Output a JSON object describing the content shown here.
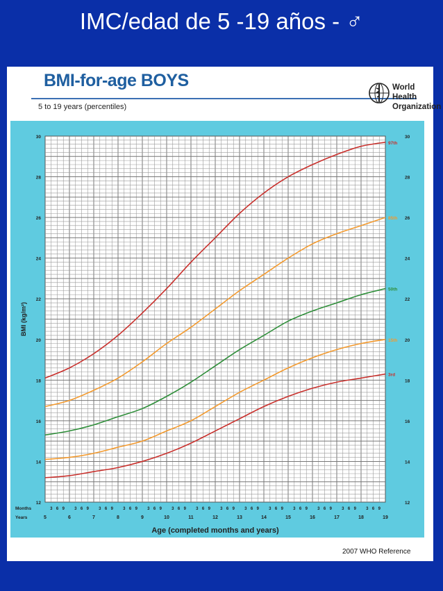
{
  "slide": {
    "title": "IMC/edad de 5 -19 años - ♂",
    "background": "#0a2fa8"
  },
  "header": {
    "title": "BMI-for-age  BOYS",
    "subtitle": "5 to 19 years (percentiles)",
    "organization": [
      "World Health",
      "Organization"
    ],
    "logo_icon": "who-emblem-icon"
  },
  "footer": {
    "reference": "2007  WHO Reference"
  },
  "chart_data": {
    "type": "line",
    "title": "BMI-for-age  BOYS",
    "subtitle": "5 to 19 years (percentiles)",
    "xlabel": "Age (completed months and years)",
    "ylabel": "BMI (kg/m²)",
    "xlim": [
      5,
      19
    ],
    "ylim": [
      12,
      30
    ],
    "year_ticks": [
      "5",
      "6",
      "7",
      "8",
      "9",
      "10",
      "11",
      "12",
      "13",
      "14",
      "15",
      "16",
      "17",
      "18",
      "19"
    ],
    "month_ticks": [
      "3",
      "6",
      "9"
    ],
    "y_ticks": [
      "12",
      "14",
      "16",
      "18",
      "20",
      "22",
      "24",
      "26",
      "28",
      "30"
    ],
    "row_labels": [
      "Months",
      "Years"
    ],
    "grid": true,
    "chart_area_color": "#5fcbe0",
    "series": [
      {
        "name": "97th",
        "color": "#c9302c",
        "x": [
          5,
          6,
          7,
          8,
          9,
          10,
          11,
          12,
          13,
          14,
          15,
          16,
          17,
          18,
          19
        ],
        "y": [
          18.1,
          18.6,
          19.3,
          20.2,
          21.3,
          22.5,
          23.8,
          25.0,
          26.2,
          27.2,
          28.0,
          28.6,
          29.1,
          29.5,
          29.7
        ]
      },
      {
        "name": "85th",
        "color": "#f39a2e",
        "x": [
          5,
          6,
          7,
          8,
          9,
          10,
          11,
          12,
          13,
          14,
          15,
          16,
          17,
          18,
          19
        ],
        "y": [
          16.7,
          17.0,
          17.5,
          18.1,
          18.9,
          19.8,
          20.6,
          21.5,
          22.4,
          23.2,
          24.0,
          24.7,
          25.2,
          25.6,
          26.0
        ]
      },
      {
        "name": "50th",
        "color": "#2f8f3a",
        "x": [
          5,
          6,
          7,
          8,
          9,
          10,
          11,
          12,
          13,
          14,
          15,
          16,
          17,
          18,
          19
        ],
        "y": [
          15.3,
          15.5,
          15.8,
          16.2,
          16.6,
          17.2,
          17.9,
          18.7,
          19.5,
          20.2,
          20.9,
          21.4,
          21.8,
          22.2,
          22.5
        ]
      },
      {
        "name": "15th",
        "color": "#f39a2e",
        "x": [
          5,
          6,
          7,
          8,
          9,
          10,
          11,
          12,
          13,
          14,
          15,
          16,
          17,
          18,
          19
        ],
        "y": [
          14.1,
          14.2,
          14.4,
          14.7,
          15.0,
          15.5,
          16.0,
          16.7,
          17.4,
          18.0,
          18.6,
          19.1,
          19.5,
          19.8,
          20.0
        ]
      },
      {
        "name": "3rd",
        "color": "#c9302c",
        "x": [
          5,
          6,
          7,
          8,
          9,
          10,
          11,
          12,
          13,
          14,
          15,
          16,
          17,
          18,
          19
        ],
        "y": [
          13.2,
          13.3,
          13.5,
          13.7,
          14.0,
          14.4,
          14.9,
          15.5,
          16.1,
          16.7,
          17.2,
          17.6,
          17.9,
          18.1,
          18.3
        ]
      }
    ]
  }
}
